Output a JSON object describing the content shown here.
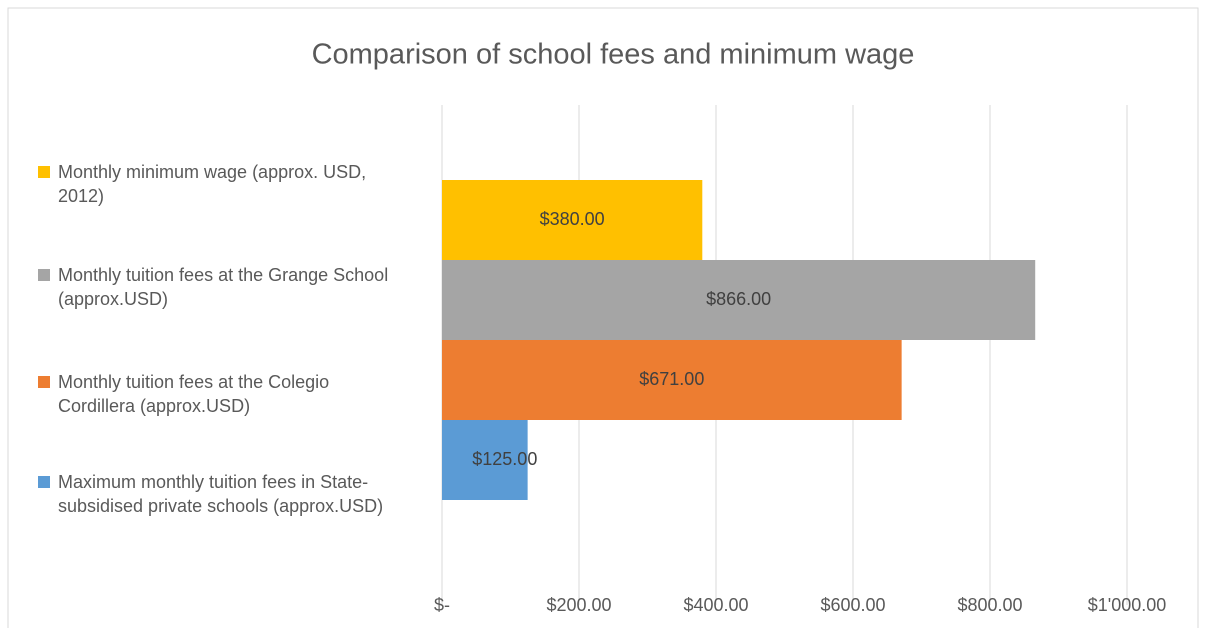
{
  "chart_data": {
    "type": "bar",
    "orientation": "horizontal",
    "title": "Comparison of school fees and minimum wage",
    "categories": [
      null
    ],
    "series": [
      {
        "name": "Monthly minimum wage (approx. USD, 2012)",
        "color": "#ffc000",
        "values": [
          380
        ],
        "value_labels": [
          "$380.00"
        ]
      },
      {
        "name": "Monthly tuition fees at the Grange School (approx.USD)",
        "color": "#a5a5a5",
        "values": [
          866
        ],
        "value_labels": [
          "$866.00"
        ]
      },
      {
        "name": "Monthly tuition fees at the Colegio Cordillera (approx.USD)",
        "color": "#ed7d31",
        "values": [
          671
        ],
        "value_labels": [
          "$671.00"
        ]
      },
      {
        "name": "Maximum monthly tuition fees in State-subsidised private schools (approx.USD)",
        "color": "#5b9bd5",
        "values": [
          125
        ],
        "value_labels": [
          "$125.00"
        ]
      }
    ],
    "xlim": [
      0,
      1000
    ],
    "xticks": [
      {
        "value": 0,
        "label": "$-"
      },
      {
        "value": 200,
        "label": "$200.00"
      },
      {
        "value": 400,
        "label": "$400.00"
      },
      {
        "value": 600,
        "label": "$600.00"
      },
      {
        "value": 800,
        "label": "$800.00"
      },
      {
        "value": 1000,
        "label": "$1'000.00"
      }
    ],
    "grid": true,
    "legend": "left"
  }
}
